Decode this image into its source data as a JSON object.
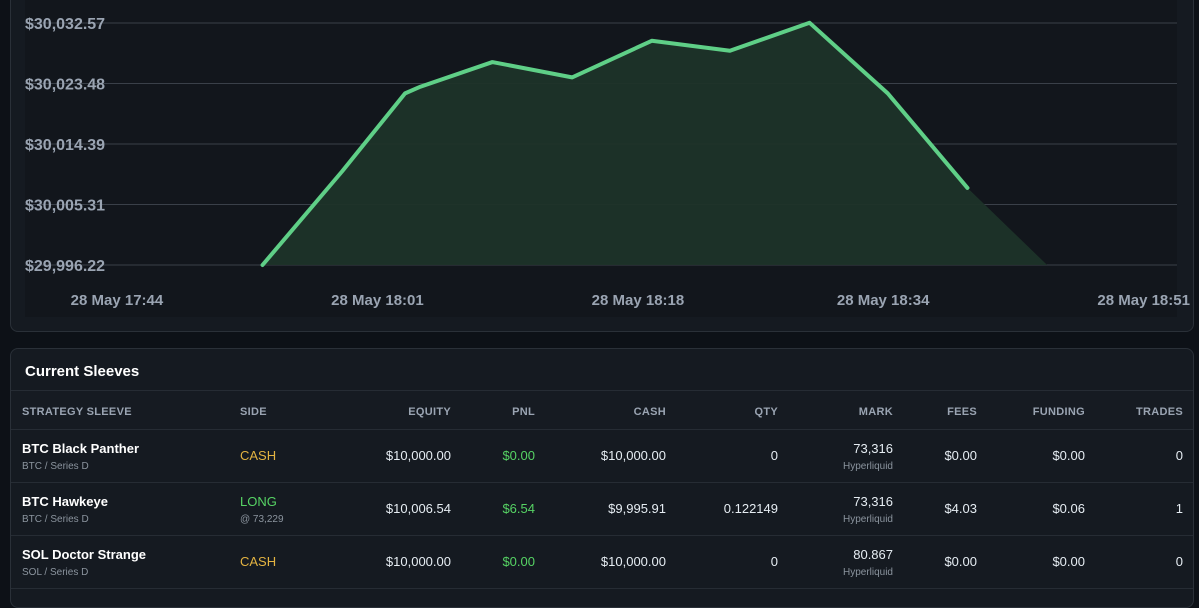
{
  "chart_data": {
    "type": "area",
    "y_ticks": [
      "$30,032.57",
      "$30,023.48",
      "$30,014.39",
      "$30,005.31",
      "$29,996.22"
    ],
    "y_tick_values": [
      30032.57,
      30023.48,
      30014.39,
      30005.31,
      29996.22
    ],
    "x_ticks": [
      "28 May 17:44",
      "28 May 18:01",
      "28 May 18:18",
      "28 May 18:34",
      "28 May 18:51"
    ],
    "x_tick_values_min": [
      0,
      17,
      34,
      50,
      67
    ],
    "xlim_min": [
      -6,
      68
    ],
    "ylim": [
      29996.22,
      30032.57
    ],
    "points_min": [
      9.5,
      14.7,
      18.8,
      19.8,
      24.5,
      29.7,
      34.9,
      40.0,
      45.2,
      50.3,
      55.5,
      60.7
    ],
    "points_value": [
      29996.22,
      30010.3,
      30022.0,
      30023.0,
      30026.7,
      30024.4,
      30029.9,
      30028.4,
      30032.6,
      30022.0,
      30007.8,
      29996.22
    ],
    "solid_until_index": 10,
    "line_color": "#5fcf87",
    "fill_color": "#1e3329",
    "grid": true
  },
  "table": {
    "title": "Current Sleeves",
    "headers": {
      "strategy": "STRATEGY SLEEVE",
      "side": "SIDE",
      "equity": "EQUITY",
      "pnl": "PNL",
      "cash": "CASH",
      "qty": "QTY",
      "mark": "MARK",
      "fees": "FEES",
      "funding": "FUNDING",
      "trades": "TRADES"
    },
    "rows": [
      {
        "name": "BTC Black Panther",
        "sub": "BTC / Series D",
        "side": "CASH",
        "side_sub": "",
        "equity": "$10,000.00",
        "pnl": "$0.00",
        "cash": "$10,000.00",
        "qty": "0",
        "mark": "73,316",
        "mark_sub": "Hyperliquid",
        "fees": "$0.00",
        "funding": "$0.00",
        "trades": "0"
      },
      {
        "name": "BTC Hawkeye",
        "sub": "BTC / Series D",
        "side": "LONG",
        "side_sub": "@ 73,229",
        "equity": "$10,006.54",
        "pnl": "$6.54",
        "cash": "$9,995.91",
        "qty": "0.122149",
        "mark": "73,316",
        "mark_sub": "Hyperliquid",
        "fees": "$4.03",
        "funding": "$0.06",
        "trades": "1"
      },
      {
        "name": "SOL Doctor Strange",
        "sub": "SOL / Series D",
        "side": "CASH",
        "side_sub": "",
        "equity": "$10,000.00",
        "pnl": "$0.00",
        "cash": "$10,000.00",
        "qty": "0",
        "mark": "80.867",
        "mark_sub": "Hyperliquid",
        "fees": "$0.00",
        "funding": "$0.00",
        "trades": "0"
      }
    ]
  }
}
